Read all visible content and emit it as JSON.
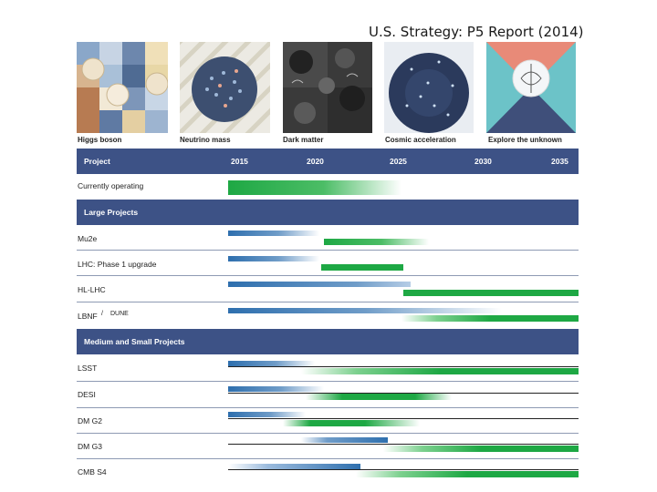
{
  "title": "U.S. Strategy: P5 Report (2014)",
  "panels": [
    {
      "label": "Higgs boson"
    },
    {
      "label": "Neutrino mass"
    },
    {
      "label": "Dark matter"
    },
    {
      "label": "Cosmic acceleration"
    },
    {
      "label": "Explore the unknown"
    }
  ],
  "header": {
    "project_label": "Project",
    "years": [
      "2015",
      "2020",
      "2025",
      "2030",
      "2035"
    ]
  },
  "currently_operating": "Currently operating",
  "sections": {
    "large": "Large Projects",
    "medium": "Medium and Small Projects"
  },
  "rows": {
    "mu2e": "Mu2e",
    "lhc_phase1": "LHC: Phase 1 upgrade",
    "hl_lhc": "HL-LHC",
    "lbnf": "LBNF",
    "lbnf_sep": "/",
    "dune": "DUNE",
    "lsst": "LSST",
    "desi": "DESI",
    "dm_g2": "DM G2",
    "dm_g3": "DM G3",
    "cmb_s4": "CMB S4"
  },
  "colors": {
    "bar": "#3d5286",
    "design_phase": "#2e6fae",
    "construction_phase": "#1ea844"
  }
}
